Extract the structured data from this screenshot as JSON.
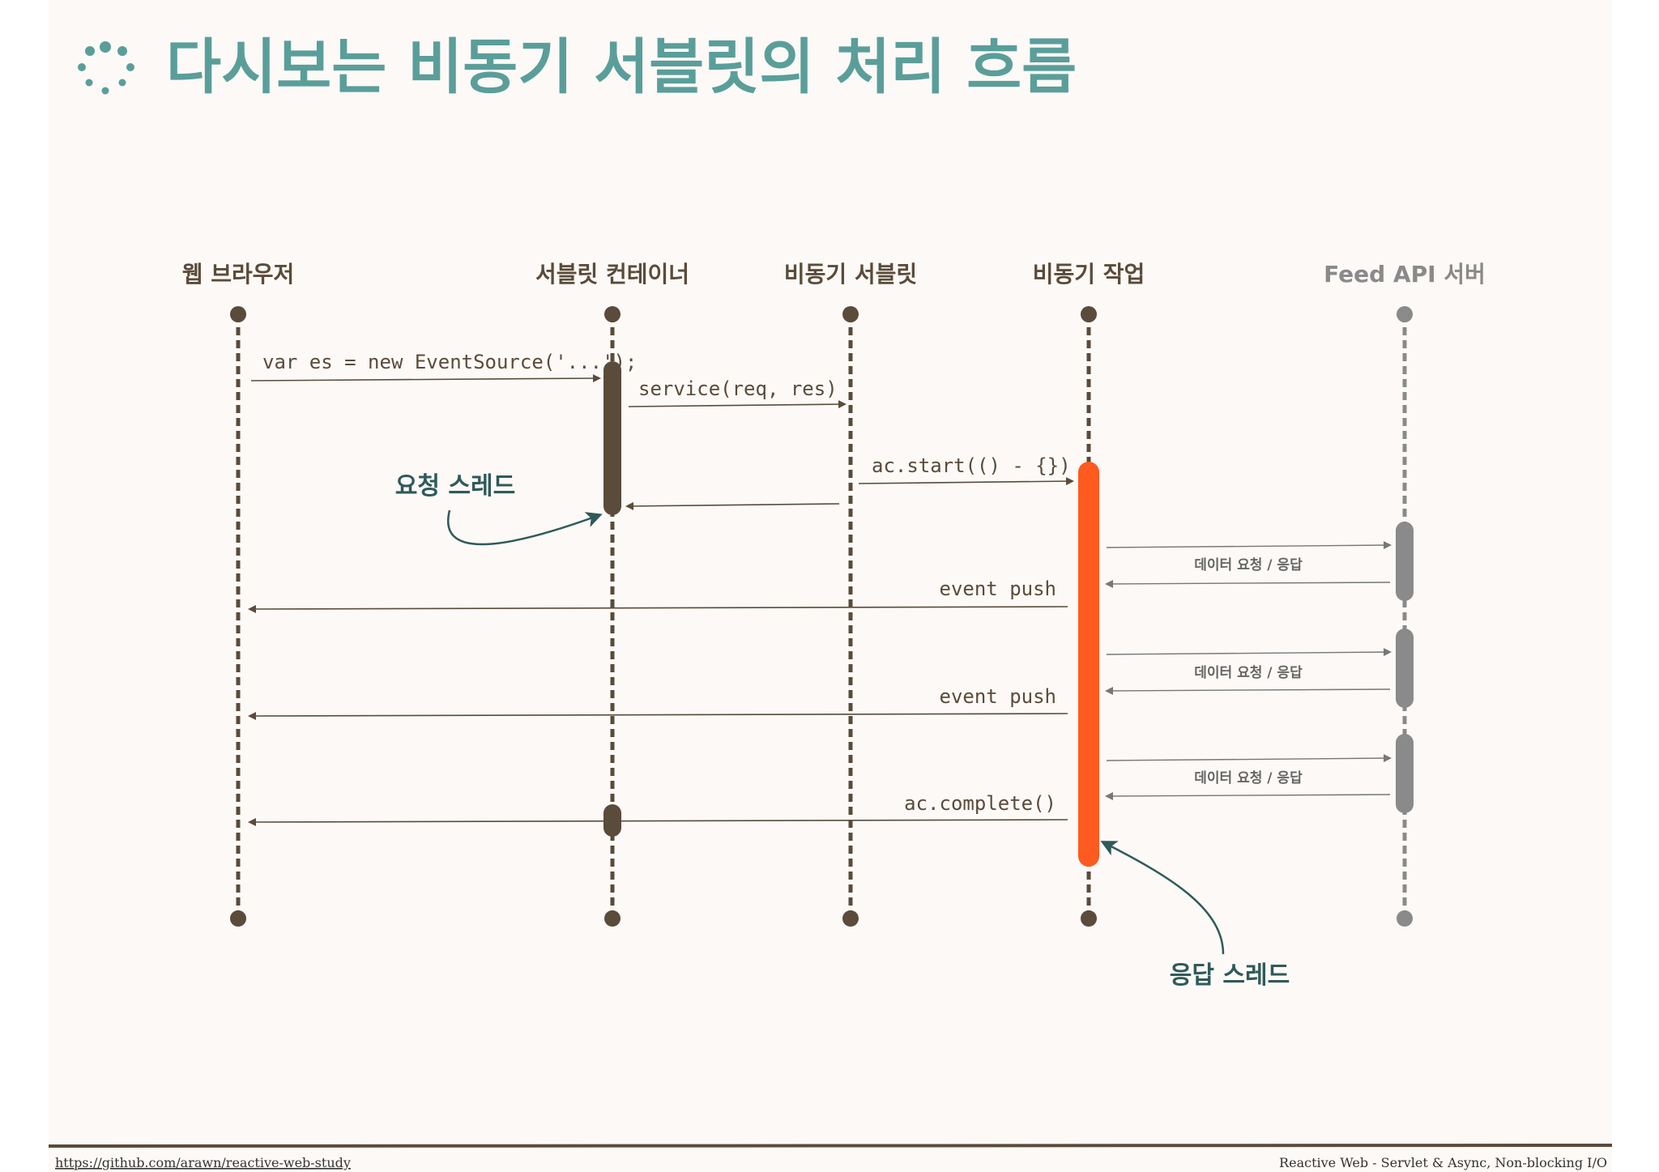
{
  "title": "다시보는 비동기 서블릿의 처리 흐름",
  "participants": [
    {
      "id": "browser",
      "label": "웹 브라우저",
      "color": "#5a4b3a"
    },
    {
      "id": "container",
      "label": "서블릿 컨테이너",
      "color": "#5a4b3a"
    },
    {
      "id": "servlet",
      "label": "비동기 서블릿",
      "color": "#5a4b3a"
    },
    {
      "id": "task",
      "label": "비동기 작업",
      "color": "#5a4b3a"
    },
    {
      "id": "feed",
      "label": "Feed API 서버",
      "color": "#8a8a8a"
    }
  ],
  "messages": [
    {
      "id": "m1",
      "label": "var es = new EventSource('...');"
    },
    {
      "id": "m2",
      "label": "service(req, res)"
    },
    {
      "id": "m3",
      "label": "ac.start(() - {})"
    },
    {
      "id": "m4",
      "label": ""
    },
    {
      "id": "f1",
      "label": "데이터 요청 / 응답"
    },
    {
      "id": "e1",
      "label": "event push"
    },
    {
      "id": "f2",
      "label": "데이터 요청 / 응답"
    },
    {
      "id": "e2",
      "label": "event push"
    },
    {
      "id": "f3",
      "label": "데이터 요청 / 응답"
    },
    {
      "id": "c1",
      "label": "ac.complete()"
    }
  ],
  "annotations": {
    "request_thread": "요청 스레드",
    "response_thread": "응답 스레드"
  },
  "colors": {
    "title": "#5a9e9a",
    "line": "#5a4b3a",
    "response_bar": "#ff5a1f",
    "feed": "#8a8a8a",
    "annotation": "#2f5a5a"
  },
  "footer": {
    "left": "https://github.com/arawn/reactive-web-study",
    "right": "Reactive Web - Servlet & Async, Non-blocking I/O"
  }
}
